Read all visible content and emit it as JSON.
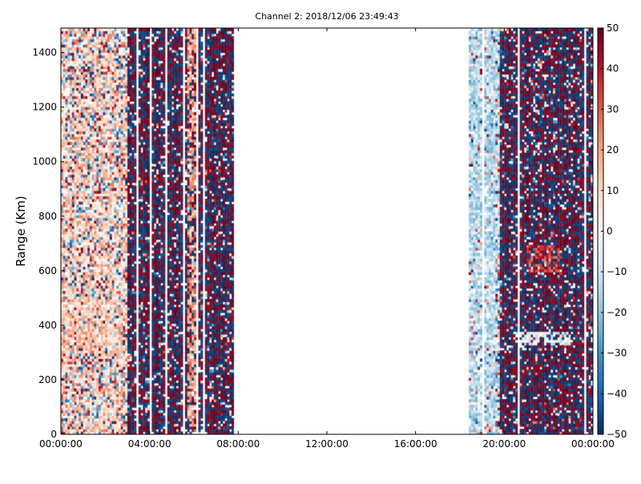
{
  "chart_data": {
    "type": "heatmap",
    "title": "Channel 2: 2018/12/06 23:49:43",
    "xlabel": "",
    "ylabel": "Range (Km)",
    "x_ticks": [
      "00:00:00",
      "04:00:00",
      "08:00:00",
      "12:00:00",
      "16:00:00",
      "20:00:00",
      "00:00:00"
    ],
    "x_tick_hours": [
      0,
      4,
      8,
      12,
      16,
      20,
      24
    ],
    "xlim_hours": [
      0,
      24
    ],
    "y_ticks": [
      0,
      200,
      400,
      600,
      800,
      1000,
      1200,
      1400
    ],
    "ylim": [
      0,
      1490
    ],
    "colorbar": {
      "ticks": [
        "50",
        "40",
        "30",
        "20",
        "10",
        "0",
        "−10",
        "−20",
        "−30",
        "−40",
        "−50"
      ],
      "tick_values": [
        50,
        40,
        30,
        20,
        10,
        0,
        -10,
        -20,
        -30,
        -40,
        -50
      ],
      "vmin": -50,
      "vmax": 50,
      "cmap": "RdBu_r",
      "colors": [
        "#053061",
        "#2166ac",
        "#4393c3",
        "#92c5de",
        "#d1e5f0",
        "#f7f7f7",
        "#fddbc7",
        "#f4a582",
        "#d6604d",
        "#b2182b",
        "#67001f"
      ]
    },
    "data_gaps_hours": [
      [
        7.8,
        18.4
      ]
    ],
    "data_segments": [
      {
        "start_hour": 0,
        "end_hour": 7.8
      },
      {
        "start_hour": 18.4,
        "end_hour": 24
      }
    ],
    "features": [
      {
        "hour_range": [
          5.7,
          6.1
        ],
        "range_km": [
          0,
          1490
        ],
        "value": 20
      },
      {
        "hour_range": [
          0,
          2.8
        ],
        "range_km": [
          300,
          500
        ],
        "value": 15
      },
      {
        "hour_range": [
          21,
          22.5
        ],
        "range_km": [
          600,
          700
        ],
        "value": 35
      },
      {
        "hour_range": [
          20.5,
          23
        ],
        "range_km": [
          330,
          380
        ],
        "value": -5
      },
      {
        "hour_range": [
          18.4,
          19.6
        ],
        "range_km": [
          0,
          1490
        ],
        "value": -15
      }
    ],
    "grid": false,
    "legend": "colorbar-right"
  }
}
